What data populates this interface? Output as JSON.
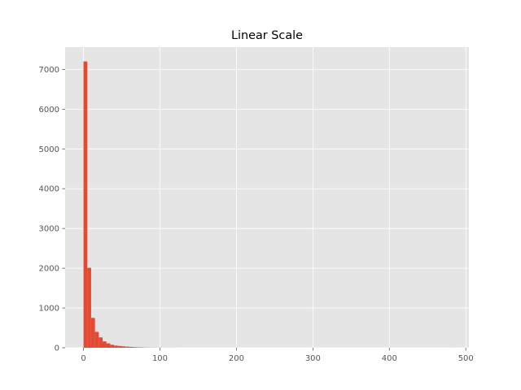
{
  "chart_data": {
    "type": "bar",
    "title": "Linear Scale",
    "xlabel": "",
    "ylabel": "",
    "xlim": [
      -24,
      504
    ],
    "ylim": [
      0,
      7560
    ],
    "x_ticks": [
      0,
      100,
      200,
      300,
      400,
      500
    ],
    "y_ticks": [
      0,
      1000,
      2000,
      3000,
      4000,
      5000,
      6000,
      7000
    ],
    "grid": true,
    "bin_width": 5,
    "bins_start": 0,
    "values": [
      7200,
      2010,
      750,
      400,
      260,
      160,
      110,
      75,
      55,
      45,
      35,
      28,
      22,
      15,
      10,
      8,
      5,
      4,
      3,
      2,
      2,
      1,
      1,
      1,
      1,
      0,
      0,
      0,
      0,
      0,
      0,
      0,
      0,
      0,
      0,
      0,
      0,
      0,
      0,
      0,
      0,
      0,
      0,
      0,
      0,
      0,
      0,
      0,
      0,
      0,
      0,
      0,
      0,
      0,
      0,
      0,
      0,
      0,
      0,
      0,
      0,
      0,
      0,
      0,
      0,
      0,
      0,
      0,
      0,
      0,
      0,
      0,
      0,
      0,
      0,
      0,
      0,
      0,
      0,
      0,
      0,
      0,
      0,
      0,
      0,
      0,
      0,
      0,
      0,
      0,
      0,
      0,
      0,
      0,
      0,
      0,
      1
    ],
    "colors": {
      "bar": "#E24A33",
      "plot_bg": "#E5E5E5",
      "grid": "#FFFFFF",
      "tick_text": "#555555"
    }
  }
}
